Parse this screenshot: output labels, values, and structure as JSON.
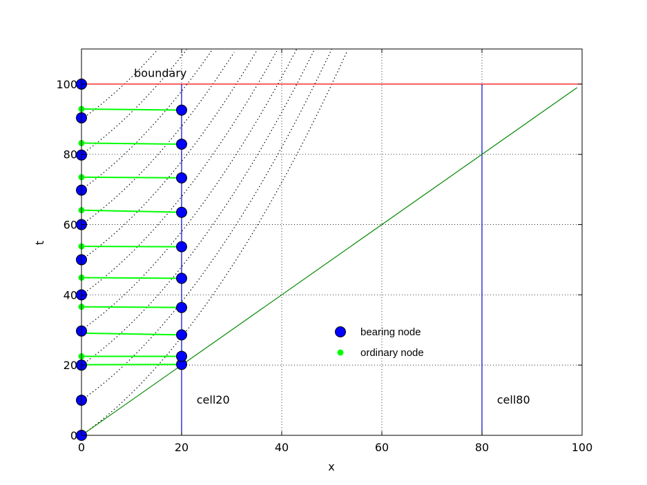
{
  "chart_data": {
    "type": "scatter",
    "xlabel": "x",
    "ylabel": "t",
    "xlim": [
      0,
      100
    ],
    "ylim": [
      0,
      110
    ],
    "xticks": [
      0,
      20,
      40,
      60,
      80,
      100
    ],
    "yticks": [
      0,
      20,
      40,
      60,
      80,
      100
    ],
    "xtick_labels": [
      "0",
      "20",
      "40",
      "60",
      "80",
      "100"
    ],
    "ytick_labels": [
      "0",
      "20",
      "40",
      "60",
      "80",
      "100"
    ],
    "grid": true,
    "legend_position": "center-right",
    "legend": [
      {
        "label": "bearing node",
        "marker": "large-circle",
        "color": "#0000ff"
      },
      {
        "label": "ordinary node",
        "marker": "small-dot",
        "color": "#00ff00"
      }
    ],
    "annotations": [
      {
        "text": "boundary",
        "x": 10.5,
        "y": 103
      },
      {
        "text": "cell20",
        "x": 23,
        "y": 10
      },
      {
        "text": "cell80",
        "x": 83,
        "y": 10
      }
    ],
    "boundary": {
      "t": 100,
      "color": "#ff0000"
    },
    "cells": [
      {
        "x": 20,
        "t_max": 100,
        "color": "#0000cc"
      },
      {
        "x": 80,
        "t_max": 100,
        "color": "#0000cc"
      }
    ],
    "diagonal": {
      "from": [
        0,
        0
      ],
      "to": [
        99,
        99
      ],
      "color": "#008800"
    },
    "characteristics": {
      "color": "#000000",
      "t0": [
        0,
        10,
        20,
        30,
        40,
        50,
        60,
        70,
        80,
        90
      ],
      "k": 0.02
    },
    "bearing_nodes": [
      {
        "x": 0,
        "t": 0
      },
      {
        "x": 0,
        "t": 10
      },
      {
        "x": 0,
        "t": 20
      },
      {
        "x": 0,
        "t": 29.7
      },
      {
        "x": 0,
        "t": 40
      },
      {
        "x": 0,
        "t": 50
      },
      {
        "x": 0,
        "t": 60
      },
      {
        "x": 0,
        "t": 69.8
      },
      {
        "x": 0,
        "t": 79.8
      },
      {
        "x": 0,
        "t": 90.4
      },
      {
        "x": 0,
        "t": 100
      },
      {
        "x": 20,
        "t": 20.2
      },
      {
        "x": 20,
        "t": 22.5
      },
      {
        "x": 20,
        "t": 28.6
      },
      {
        "x": 20,
        "t": 36.4
      },
      {
        "x": 20,
        "t": 44.7
      },
      {
        "x": 20,
        "t": 53.7
      },
      {
        "x": 20,
        "t": 63.5
      },
      {
        "x": 20,
        "t": 73.3
      },
      {
        "x": 20,
        "t": 82.9
      },
      {
        "x": 20,
        "t": 92.6
      }
    ],
    "ordinary_nodes": [
      {
        "x": 0,
        "t": 20.1
      },
      {
        "x": 0,
        "t": 22.5
      },
      {
        "x": 0,
        "t": 29.1
      },
      {
        "x": 0,
        "t": 36.6
      },
      {
        "x": 0,
        "t": 44.9
      },
      {
        "x": 0,
        "t": 53.8
      },
      {
        "x": 0,
        "t": 64.1
      },
      {
        "x": 0,
        "t": 73.5
      },
      {
        "x": 0,
        "t": 83.2
      },
      {
        "x": 0,
        "t": 92.9
      }
    ],
    "links": [
      {
        "from": [
          0,
          20.1
        ],
        "to": [
          20,
          20.2
        ]
      },
      {
        "from": [
          0,
          22.5
        ],
        "to": [
          20,
          22.5
        ]
      },
      {
        "from": [
          0,
          29.1
        ],
        "to": [
          20,
          28.6
        ]
      },
      {
        "from": [
          0,
          36.6
        ],
        "to": [
          20,
          36.4
        ]
      },
      {
        "from": [
          0,
          44.9
        ],
        "to": [
          20,
          44.7
        ]
      },
      {
        "from": [
          0,
          53.8
        ],
        "to": [
          20,
          53.7
        ]
      },
      {
        "from": [
          0,
          64.1
        ],
        "to": [
          20,
          63.5
        ]
      },
      {
        "from": [
          0,
          73.5
        ],
        "to": [
          20,
          73.3
        ]
      },
      {
        "from": [
          0,
          83.2
        ],
        "to": [
          20,
          82.9
        ]
      },
      {
        "from": [
          0,
          92.9
        ],
        "to": [
          20,
          92.6
        ]
      }
    ],
    "link_color": "#00ff00"
  }
}
